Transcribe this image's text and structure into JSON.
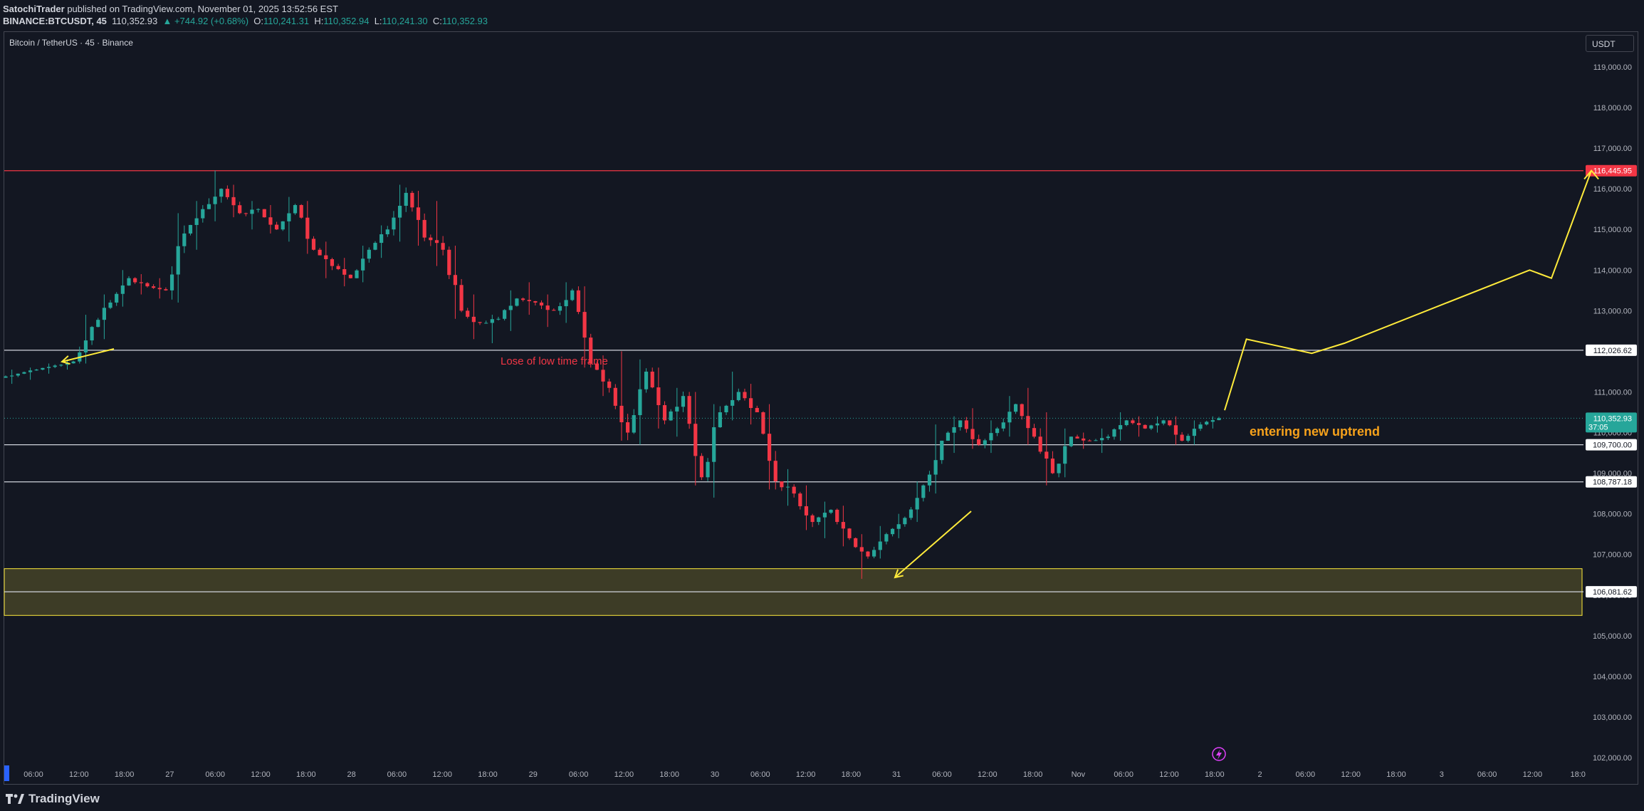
{
  "header": {
    "author": "SatochiTrader",
    "published": "published on TradingView.com, November 01, 2025 13:52:56 EST",
    "symbol": "BINANCE:BTCUSDT, 45",
    "last": "110,352.93",
    "change": "▲ +744.92 (+0.68%)",
    "o_label": "O:",
    "o": "110,241.31",
    "h_label": "H:",
    "h": "110,352.94",
    "l_label": "L:",
    "l": "110,241.30",
    "c_label": "C:",
    "c": "110,352.93"
  },
  "chart_title": "Bitcoin / TetherUS · 45 · Binance",
  "currency_button": "USDT",
  "footer": {
    "brand": "TradingView"
  },
  "colors": {
    "up": "#26a69a",
    "down": "#f23645",
    "background": "#131722",
    "resistance": "#f23645",
    "annotation": "#ffeb3b",
    "text_orange": "#f7a21b"
  },
  "chart_data": {
    "type": "candlestick",
    "ylim": [
      101700,
      119700
    ],
    "y_ticks": [
      102000,
      103000,
      104000,
      105000,
      106000,
      107000,
      108000,
      109000,
      110000,
      111000,
      112000,
      113000,
      114000,
      115000,
      116000,
      117000,
      118000,
      119000
    ],
    "y_tick_labels": [
      "102,000.00",
      "103,000.00",
      "104,000.00",
      "105,000.00",
      "106,000.00",
      "107,000.00",
      "108,000.00",
      "109,000.00",
      "110,000.00",
      "111,000.00",
      "112,000.00",
      "113,000.00",
      "114,000.00",
      "115,000.00",
      "116,000.00",
      "117,000.00",
      "118,000.00",
      "119,000.00"
    ],
    "x_labels": [
      "06:00",
      "12:00",
      "18:00",
      "27",
      "06:00",
      "12:00",
      "18:00",
      "28",
      "06:00",
      "12:00",
      "18:00",
      "29",
      "06:00",
      "12:00",
      "18:00",
      "30",
      "06:00",
      "12:00",
      "18:00",
      "31",
      "06:00",
      "12:00",
      "18:00",
      "Nov",
      "06:00",
      "12:00",
      "18:00",
      "2",
      "06:00",
      "12:00",
      "18:00",
      "3",
      "06:00",
      "12:00",
      "18:0"
    ],
    "horizontal_levels": [
      {
        "value": 116445.95,
        "label": "116,445.95",
        "color": "#f23645"
      },
      {
        "value": 112026.62,
        "label": "112,026.62",
        "color": "#d1d4dc"
      },
      {
        "value": 109700.0,
        "label": "109,700.00",
        "color": "#d1d4dc"
      },
      {
        "value": 108787.18,
        "label": "108,787.18",
        "color": "#d1d4dc"
      },
      {
        "value": 106081.62,
        "label": "106,081.62",
        "color": "#d1d4dc"
      }
    ],
    "last_price": {
      "value": 110352.93,
      "label": "110,352.93",
      "countdown": "37:05"
    },
    "zone": {
      "top": 106650,
      "bottom": 105500
    },
    "annotations": [
      {
        "text": "Lose of low time frame",
        "color": "#f23645"
      },
      {
        "text": "entering new uptrend",
        "color": "#f7a21b"
      }
    ],
    "projection_path": [
      [
        0,
        110550
      ],
      [
        6,
        112300
      ],
      [
        24,
        111950
      ],
      [
        33,
        112200
      ],
      [
        84,
        114000
      ],
      [
        90,
        113800
      ],
      [
        101,
        116450
      ]
    ],
    "anchors": [
      [
        111350,
        111550,
        111200,
        111450
      ],
      [
        111450,
        111600,
        111300,
        111550
      ],
      [
        111550,
        111700,
        111450,
        111650
      ],
      [
        111650,
        111800,
        111550,
        111750
      ],
      [
        111750,
        112900,
        111700,
        112600
      ],
      [
        112600,
        113400,
        112300,
        113200
      ],
      [
        113200,
        114000,
        113100,
        113800
      ],
      [
        113800,
        113900,
        113400,
        113600
      ],
      [
        113600,
        113800,
        113300,
        113500
      ],
      [
        113500,
        115400,
        113200,
        114900
      ],
      [
        114900,
        115700,
        114500,
        115500
      ],
      [
        115500,
        116450,
        115200,
        116000
      ],
      [
        116000,
        116100,
        115300,
        115400
      ],
      [
        115400,
        115700,
        115000,
        115500
      ],
      [
        115500,
        115600,
        114900,
        115000
      ],
      [
        115000,
        115800,
        114700,
        115600
      ],
      [
        115600,
        115700,
        114400,
        114500
      ],
      [
        114500,
        114700,
        113800,
        114100
      ],
      [
        114100,
        114300,
        113600,
        113800
      ],
      [
        113800,
        114600,
        113700,
        114500
      ],
      [
        114500,
        115100,
        114300,
        115000
      ],
      [
        115000,
        116100,
        114700,
        115900
      ],
      [
        115900,
        115950,
        114600,
        114800
      ],
      [
        114800,
        115700,
        114100,
        114500
      ],
      [
        114500,
        114600,
        112800,
        113000
      ],
      [
        113000,
        113400,
        112300,
        112700
      ],
      [
        112700,
        112900,
        112200,
        112800
      ],
      [
        112800,
        113500,
        112500,
        113300
      ],
      [
        113300,
        113700,
        112900,
        113200
      ],
      [
        113200,
        113400,
        112600,
        113000
      ],
      [
        113000,
        113700,
        112700,
        113500
      ],
      [
        113500,
        113600,
        111600,
        111700
      ],
      [
        111700,
        111900,
        110900,
        111100
      ],
      [
        111100,
        112000,
        109800,
        110000
      ],
      [
        110000,
        111800,
        109700,
        111500
      ],
      [
        111500,
        111600,
        110100,
        110300
      ],
      [
        110300,
        111100,
        109900,
        110900
      ],
      [
        110900,
        111000,
        108700,
        108900
      ],
      [
        108900,
        110700,
        108400,
        110500
      ],
      [
        110500,
        111500,
        110300,
        111000
      ],
      [
        111000,
        111200,
        110200,
        110500
      ],
      [
        110500,
        110700,
        108600,
        108800
      ],
      [
        108800,
        109100,
        108200,
        108500
      ],
      [
        108500,
        108700,
        107600,
        107800
      ],
      [
        107800,
        108300,
        107400,
        108100
      ],
      [
        108100,
        108200,
        107200,
        107400
      ],
      [
        107400,
        107500,
        106400,
        106950
      ],
      [
        106950,
        107700,
        106900,
        107500
      ],
      [
        107500,
        108000,
        107400,
        107900
      ],
      [
        107900,
        108800,
        107800,
        108700
      ],
      [
        108700,
        110200,
        108500,
        109800
      ],
      [
        109800,
        110400,
        109500,
        110300
      ],
      [
        110300,
        110600,
        109600,
        109700
      ],
      [
        109700,
        110300,
        109500,
        110100
      ],
      [
        110100,
        110900,
        109900,
        110700
      ],
      [
        110700,
        111100,
        109700,
        109900
      ],
      [
        109900,
        110500,
        108700,
        109000
      ],
      [
        109000,
        110100,
        108900,
        109900
      ],
      [
        109900,
        110000,
        109600,
        109800
      ],
      [
        109800,
        110100,
        109500,
        109900
      ],
      [
        109900,
        110500,
        109800,
        110300
      ],
      [
        110300,
        110400,
        109900,
        110100
      ],
      [
        110100,
        110400,
        110000,
        110300
      ],
      [
        110300,
        110400,
        109700,
        109800
      ],
      [
        109800,
        110300,
        109700,
        110200
      ],
      [
        110200,
        110400,
        110100,
        110353
      ]
    ]
  }
}
